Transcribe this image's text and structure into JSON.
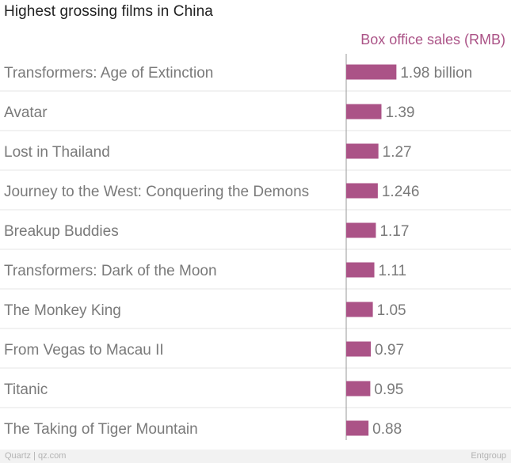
{
  "title": "Highest grossing films in China",
  "footer": {
    "credit": "Quartz | qz.com",
    "source": "Entgroup"
  },
  "colors": {
    "bar": "#ab5387",
    "axis_title": "#ab5387",
    "label": "#7a7a7a",
    "gridline": "#e6e6e6",
    "axis_line": "#9a9a9a"
  },
  "chart_data": {
    "type": "bar",
    "orientation": "horizontal",
    "series_title": "Box office sales (RMB)",
    "categories": [
      "Transformers: Age of Extinction",
      "Avatar",
      "Lost in Thailand",
      "Journey to the West: Conquering the Demons",
      "Breakup Buddies",
      "Transformers: Dark of the Moon",
      "The Monkey King",
      "From Vegas to Macau II",
      "Titanic",
      "The Taking of Tiger Mountain"
    ],
    "values": [
      1.98,
      1.39,
      1.27,
      1.246,
      1.17,
      1.11,
      1.05,
      0.97,
      0.95,
      0.88
    ],
    "value_labels": [
      "1.98 billion",
      "1.39",
      "1.27",
      "1.246",
      "1.17",
      "1.11",
      "1.05",
      "0.97",
      "0.95",
      "0.88"
    ],
    "xlim": [
      0,
      6.5
    ],
    "grid": "horizontal-separators"
  }
}
